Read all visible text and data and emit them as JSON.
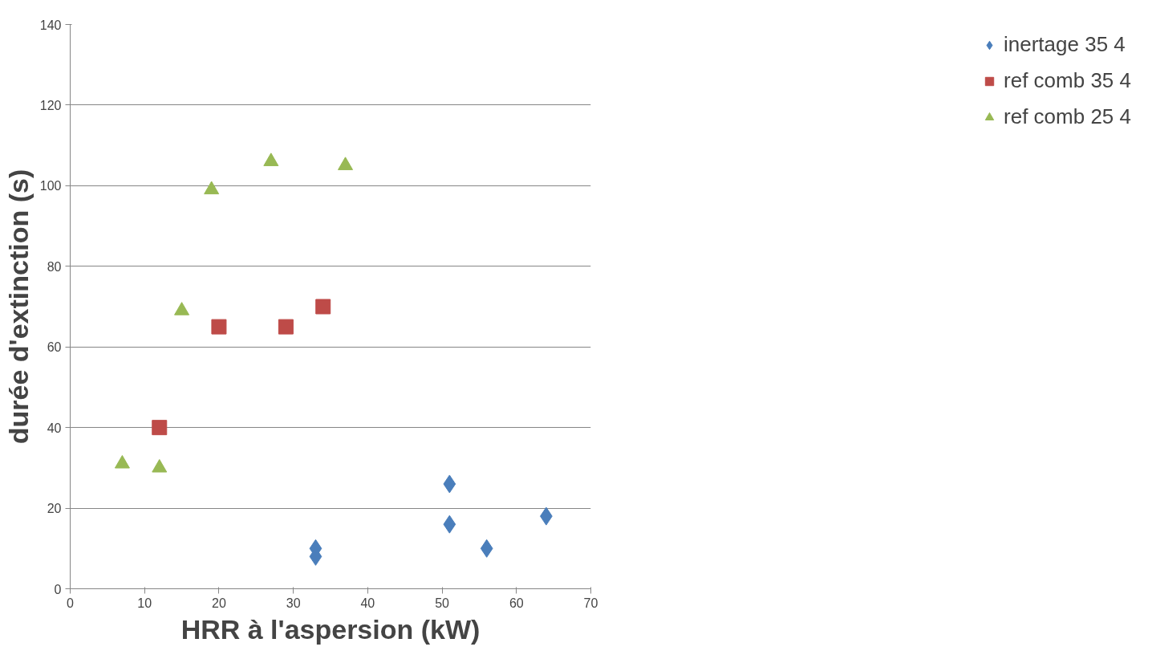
{
  "chart_data": {
    "type": "scatter",
    "xlabel": "HRR à l'aspersion (kW)",
    "ylabel": "durée d'extinction (s)",
    "xlim": [
      0,
      70
    ],
    "xticks": [
      0,
      10,
      20,
      30,
      40,
      50,
      60,
      70
    ],
    "ylim": [
      0,
      140
    ],
    "yticks": [
      0,
      20,
      40,
      60,
      80,
      100,
      120,
      140
    ],
    "grid": "y",
    "legend": "right",
    "series": [
      {
        "name": "inertage 35 4",
        "color": "#4a7ebb",
        "marker": "diamond",
        "x": [
          33,
          33,
          51,
          51,
          56,
          64
        ],
        "values": [
          10,
          8,
          26,
          16,
          10,
          18
        ]
      },
      {
        "name": "ref comb 35 4",
        "color": "#be4b48",
        "marker": "square",
        "x": [
          12,
          20,
          29,
          34
        ],
        "values": [
          40,
          65,
          65,
          70
        ]
      },
      {
        "name": "ref comb 25 4",
        "color": "#98b954",
        "marker": "triangle",
        "x": [
          7,
          12,
          15,
          19,
          27,
          37
        ],
        "values": [
          31,
          30,
          69,
          99,
          106,
          105
        ]
      }
    ]
  }
}
